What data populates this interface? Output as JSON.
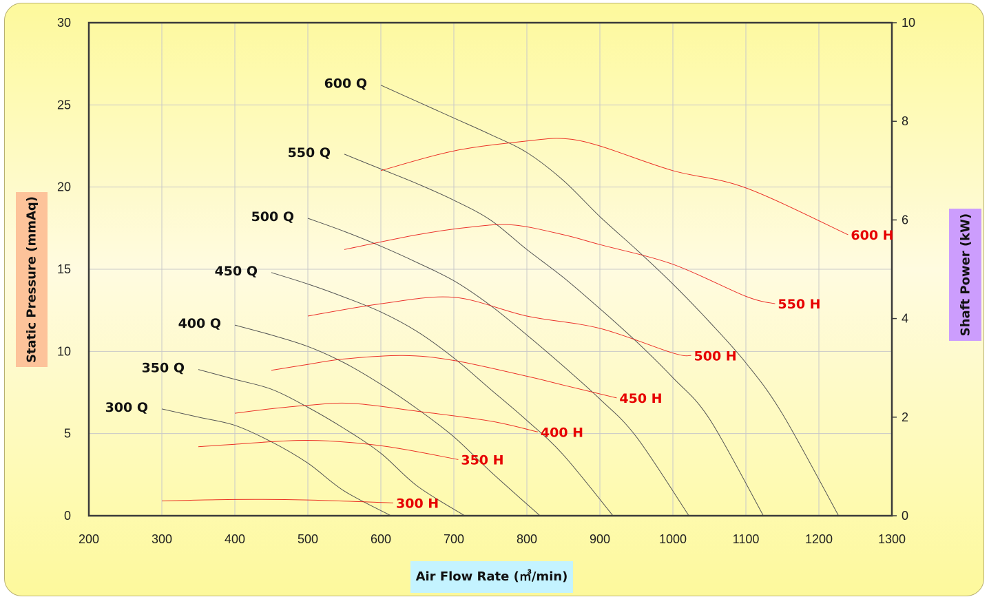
{
  "chart_data": {
    "type": "line",
    "xlabel": "Air Flow Rate (㎥/min)",
    "ylabel": "Static Pressure (mmAq)",
    "y2label": "Shaft Power (kW)",
    "xlim": [
      200,
      1300
    ],
    "ylim": [
      0,
      30
    ],
    "y2lim": [
      0,
      10
    ],
    "x_ticks": [
      "200",
      "300",
      "400",
      "500",
      "600",
      "700",
      "800",
      "900",
      "1000",
      "1100",
      "1200",
      "1300"
    ],
    "y_ticks": [
      "0",
      "5",
      "10",
      "15",
      "20",
      "25",
      "30"
    ],
    "y2_ticks": [
      "0",
      "2",
      "4",
      "6",
      "8",
      "10"
    ],
    "grid": true,
    "colors": {
      "pressure": "#555555",
      "power": "#e60000",
      "grid": "#c8c8c8"
    },
    "pressure_series": [
      {
        "name": "300 Q",
        "points": [
          [
            300,
            6.5
          ],
          [
            350,
            6.0
          ],
          [
            400,
            5.5
          ],
          [
            450,
            4.5
          ],
          [
            500,
            3.2
          ],
          [
            550,
            1.5
          ],
          [
            614,
            0.0
          ]
        ]
      },
      {
        "name": "350 Q",
        "points": [
          [
            350,
            8.9
          ],
          [
            400,
            8.3
          ],
          [
            450,
            7.7
          ],
          [
            500,
            6.6
          ],
          [
            550,
            5.3
          ],
          [
            600,
            3.8
          ],
          [
            650,
            1.8
          ],
          [
            715,
            0.0
          ]
        ]
      },
      {
        "name": "400 Q",
        "points": [
          [
            400,
            11.6
          ],
          [
            450,
            11.0
          ],
          [
            500,
            10.3
          ],
          [
            550,
            9.3
          ],
          [
            600,
            8.0
          ],
          [
            650,
            6.5
          ],
          [
            700,
            4.8
          ],
          [
            750,
            2.7
          ],
          [
            818,
            0.0
          ]
        ]
      },
      {
        "name": "450 Q",
        "points": [
          [
            450,
            14.8
          ],
          [
            500,
            14.1
          ],
          [
            550,
            13.3
          ],
          [
            600,
            12.4
          ],
          [
            650,
            11.2
          ],
          [
            700,
            9.6
          ],
          [
            750,
            7.7
          ],
          [
            800,
            5.8
          ],
          [
            850,
            3.7
          ],
          [
            918,
            0.0
          ]
        ]
      },
      {
        "name": "500 Q",
        "points": [
          [
            500,
            18.1
          ],
          [
            550,
            17.3
          ],
          [
            600,
            16.4
          ],
          [
            650,
            15.4
          ],
          [
            700,
            14.3
          ],
          [
            750,
            12.8
          ],
          [
            800,
            11.0
          ],
          [
            850,
            9.1
          ],
          [
            900,
            7.1
          ],
          [
            950,
            4.8
          ],
          [
            1022,
            0.0
          ]
        ]
      },
      {
        "name": "550 Q",
        "points": [
          [
            550,
            22.0
          ],
          [
            600,
            21.1
          ],
          [
            650,
            20.2
          ],
          [
            700,
            19.2
          ],
          [
            750,
            18.0
          ],
          [
            800,
            16.2
          ],
          [
            850,
            14.5
          ],
          [
            900,
            12.6
          ],
          [
            950,
            10.6
          ],
          [
            1000,
            8.4
          ],
          [
            1050,
            5.9
          ],
          [
            1124,
            0.0
          ]
        ]
      },
      {
        "name": "600 Q",
        "points": [
          [
            600,
            26.2
          ],
          [
            650,
            25.2
          ],
          [
            700,
            24.2
          ],
          [
            750,
            23.2
          ],
          [
            800,
            22.1
          ],
          [
            850,
            20.4
          ],
          [
            900,
            18.2
          ],
          [
            950,
            16.2
          ],
          [
            1000,
            14.1
          ],
          [
            1050,
            11.8
          ],
          [
            1100,
            9.3
          ],
          [
            1150,
            6.2
          ],
          [
            1227,
            0.0
          ]
        ]
      }
    ],
    "power_series": [
      {
        "name": "300 H",
        "points": [
          [
            300,
            0.3
          ],
          [
            400,
            0.33
          ],
          [
            500,
            0.32
          ],
          [
            617,
            0.26
          ]
        ]
      },
      {
        "name": "350 H",
        "points": [
          [
            350,
            1.4
          ],
          [
            400,
            1.45
          ],
          [
            500,
            1.53
          ],
          [
            600,
            1.42
          ],
          [
            706,
            1.14
          ]
        ]
      },
      {
        "name": "400 H",
        "points": [
          [
            400,
            2.08
          ],
          [
            450,
            2.17
          ],
          [
            500,
            2.24
          ],
          [
            560,
            2.28
          ],
          [
            650,
            2.12
          ],
          [
            750,
            1.92
          ],
          [
            815,
            1.7
          ]
        ]
      },
      {
        "name": "450 H",
        "points": [
          [
            450,
            2.95
          ],
          [
            500,
            3.07
          ],
          [
            550,
            3.18
          ],
          [
            630,
            3.25
          ],
          [
            700,
            3.15
          ],
          [
            800,
            2.83
          ],
          [
            850,
            2.65
          ],
          [
            923,
            2.39
          ]
        ]
      },
      {
        "name": "500 H",
        "points": [
          [
            500,
            4.05
          ],
          [
            600,
            4.3
          ],
          [
            700,
            4.43
          ],
          [
            800,
            4.05
          ],
          [
            900,
            3.8
          ],
          [
            1000,
            3.3
          ],
          [
            1025,
            3.25
          ]
        ]
      },
      {
        "name": "550 H",
        "points": [
          [
            550,
            5.4
          ],
          [
            650,
            5.7
          ],
          [
            720,
            5.85
          ],
          [
            780,
            5.9
          ],
          [
            850,
            5.7
          ],
          [
            900,
            5.5
          ],
          [
            1000,
            5.1
          ],
          [
            1100,
            4.45
          ],
          [
            1140,
            4.3
          ]
        ]
      },
      {
        "name": "600 H",
        "points": [
          [
            600,
            7.0
          ],
          [
            700,
            7.4
          ],
          [
            800,
            7.6
          ],
          [
            850,
            7.65
          ],
          [
            900,
            7.5
          ],
          [
            1000,
            7.0
          ],
          [
            1100,
            6.65
          ],
          [
            1240,
            5.7
          ]
        ]
      }
    ]
  }
}
